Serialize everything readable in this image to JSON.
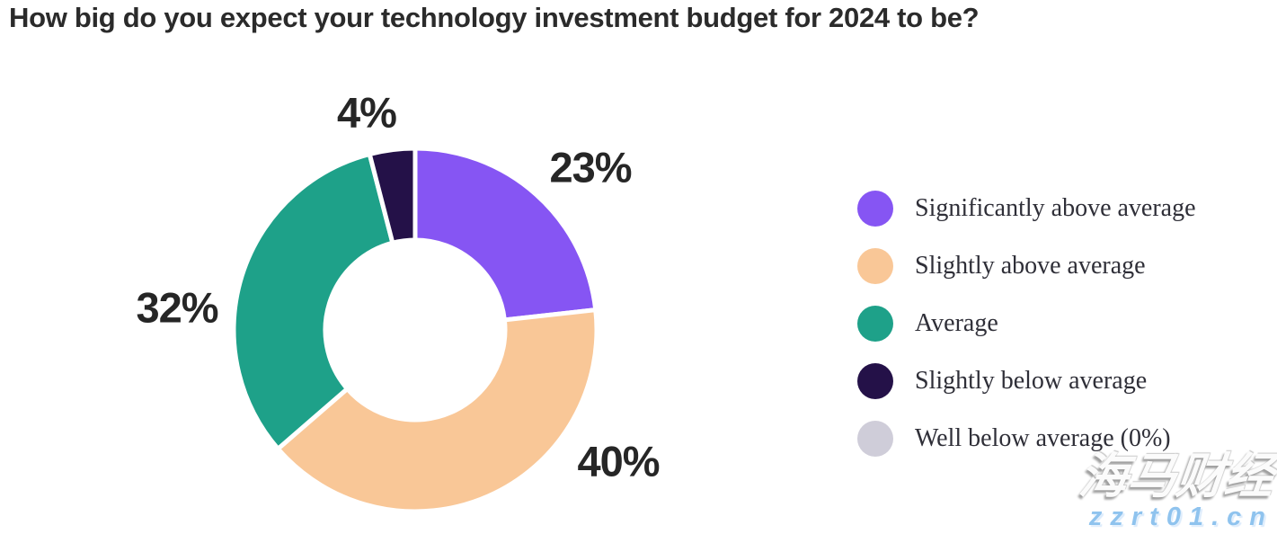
{
  "title": "How big do you expect your technology investment budget for 2024 to be?",
  "chart_data": {
    "type": "pie",
    "subtype": "donut",
    "title": "How big do you expect your technology investment budget for 2024 to be?",
    "unit": "percent",
    "start_angle": "top",
    "direction": "clockwise",
    "legend_position": "right",
    "slices": [
      {
        "label": "Significantly above average",
        "value": 23,
        "data_label": "23%",
        "color": "#8655f3"
      },
      {
        "label": "Slightly above average",
        "value": 40,
        "data_label": "40%",
        "color": "#f9c797"
      },
      {
        "label": "Average",
        "value": 32,
        "data_label": "32%",
        "color": "#1ea189"
      },
      {
        "label": "Slightly below average",
        "value": 4,
        "data_label": "4%",
        "color": "#241148"
      },
      {
        "label": "Well below average (0%)",
        "value": 0,
        "data_label": "",
        "color": "#cfcdd9"
      }
    ]
  },
  "watermark": {
    "line1": "海马财经",
    "line2": "zzrt01.cn"
  }
}
